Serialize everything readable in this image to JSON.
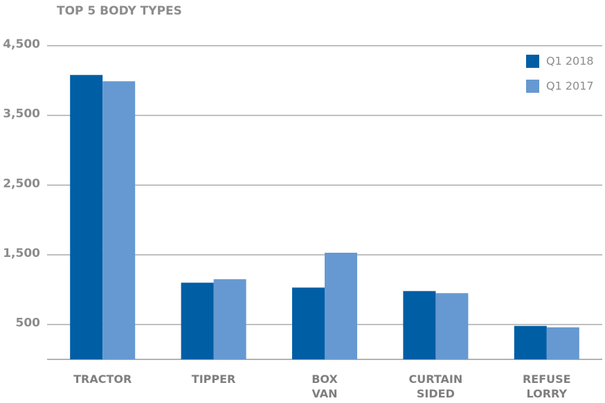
{
  "chart_data": {
    "type": "bar",
    "title": "TOP 5 BODY TYPES",
    "categories": [
      "TRACTOR",
      "TIPPER",
      "BOX VAN",
      "CURTAIN SIDED",
      "REFUSE LORRY"
    ],
    "series": [
      {
        "name": "Q1 2018",
        "color": "#005ea5",
        "values": [
          4080,
          1100,
          1030,
          980,
          480
        ]
      },
      {
        "name": "Q1 2017",
        "color": "#6699d1",
        "values": [
          3990,
          1150,
          1530,
          950,
          460
        ]
      }
    ],
    "ylim": [
      0,
      4500
    ],
    "yticks": [
      500,
      {
        "value": 1500,
        "label": "1,500"
      },
      {
        "value": 2500,
        "label": "2,500"
      },
      {
        "value": 3500,
        "label": "3,500"
      },
      {
        "value": 4500,
        "label": "4,500"
      }
    ],
    "grid": true,
    "legend": "top-right"
  }
}
